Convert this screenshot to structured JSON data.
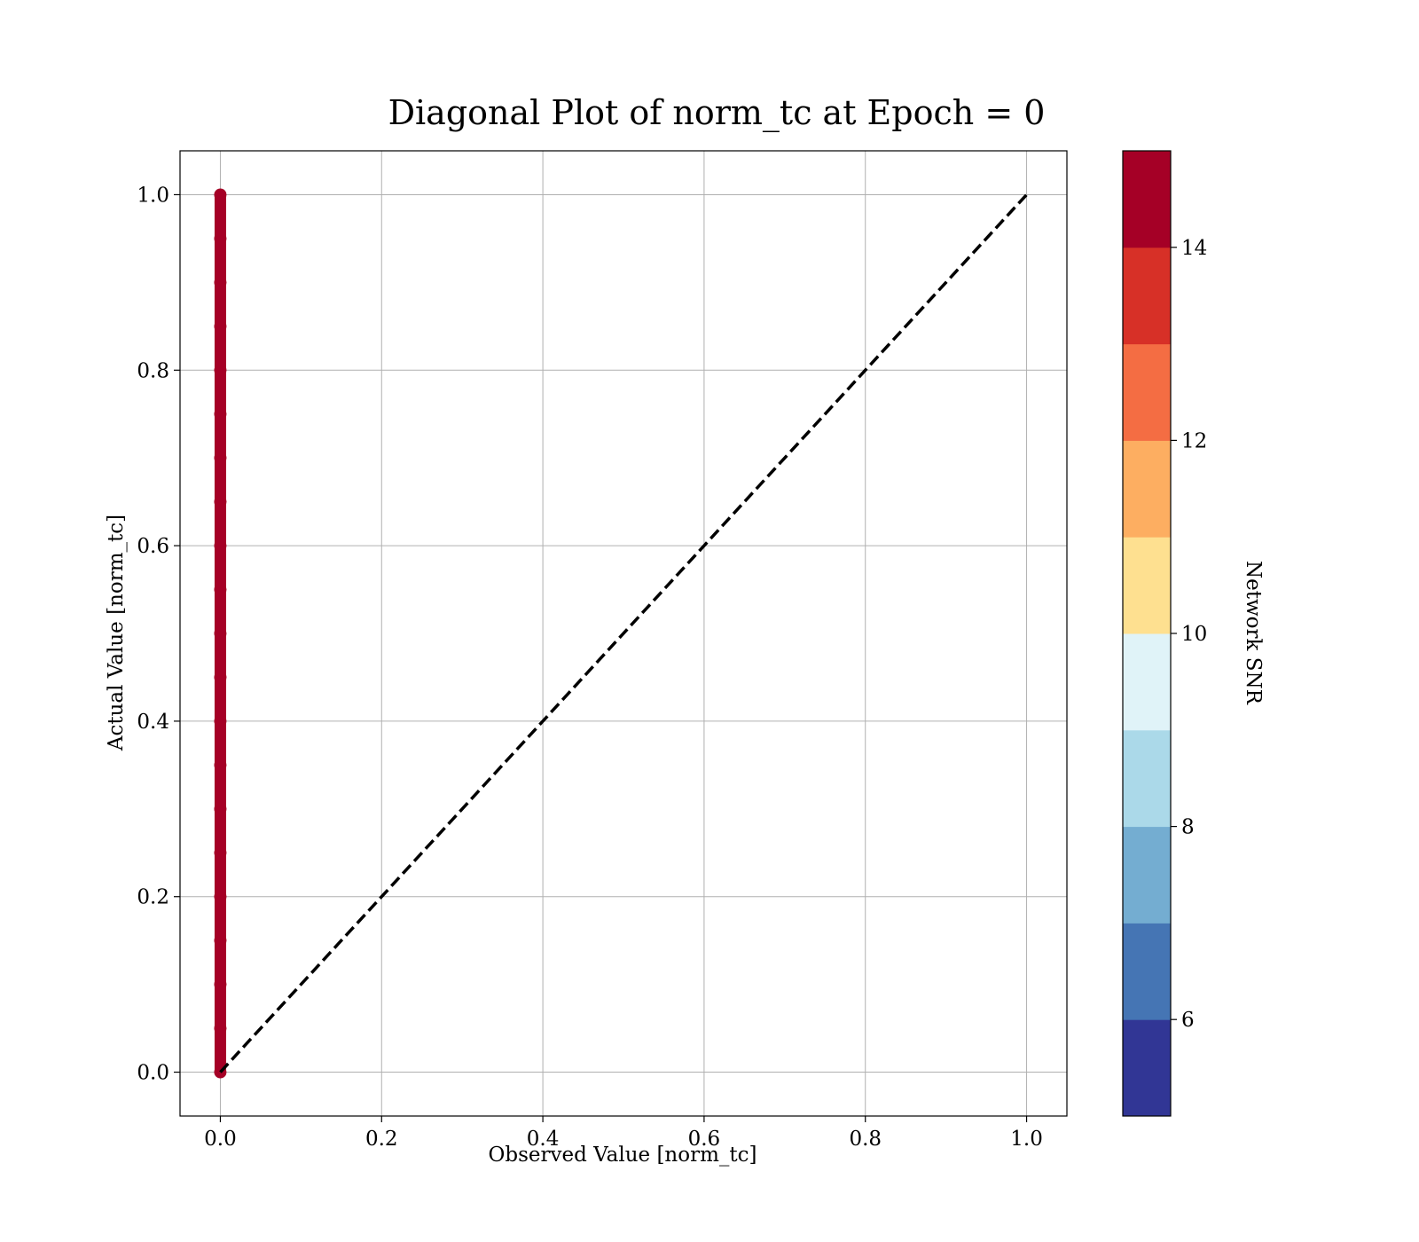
{
  "chart_data": {
    "type": "scatter",
    "title": "Diagonal Plot of norm_tc at Epoch = 0",
    "xlabel": "Observed Value [norm_tc]",
    "ylabel": "Actual Value [norm_tc]",
    "xlim": [
      -0.05,
      1.05
    ],
    "ylim": [
      -0.05,
      1.05
    ],
    "xticks": [
      "0.0",
      "0.2",
      "0.4",
      "0.6",
      "0.8",
      "1.0"
    ],
    "yticks": [
      "0.0",
      "0.2",
      "0.4",
      "0.6",
      "0.8",
      "1.0"
    ],
    "grid": true,
    "scatter": {
      "x": [
        0,
        0,
        0,
        0,
        0,
        0,
        0,
        0,
        0,
        0,
        0,
        0,
        0,
        0,
        0,
        0,
        0,
        0,
        0,
        0,
        0
      ],
      "y": [
        0.0,
        0.05,
        0.1,
        0.15,
        0.2,
        0.25,
        0.3,
        0.35,
        0.4,
        0.45,
        0.5,
        0.55,
        0.6,
        0.65,
        0.7,
        0.75,
        0.8,
        0.85,
        0.9,
        0.95,
        1.0
      ],
      "snr": 15,
      "color": "#a50026"
    },
    "reference_line": {
      "x": [
        0,
        1
      ],
      "y": [
        0,
        1
      ],
      "style": "dashed",
      "color": "#000000"
    },
    "colorbar": {
      "label": "Network SNR",
      "range": [
        5,
        15
      ],
      "ticks": [
        "6",
        "8",
        "10",
        "12",
        "14"
      ],
      "colors": [
        "#313695",
        "#4575b4",
        "#74add1",
        "#abd9e9",
        "#e0f3f8",
        "#fee090",
        "#fdae61",
        "#f46d43",
        "#d73027",
        "#a50026"
      ]
    }
  }
}
